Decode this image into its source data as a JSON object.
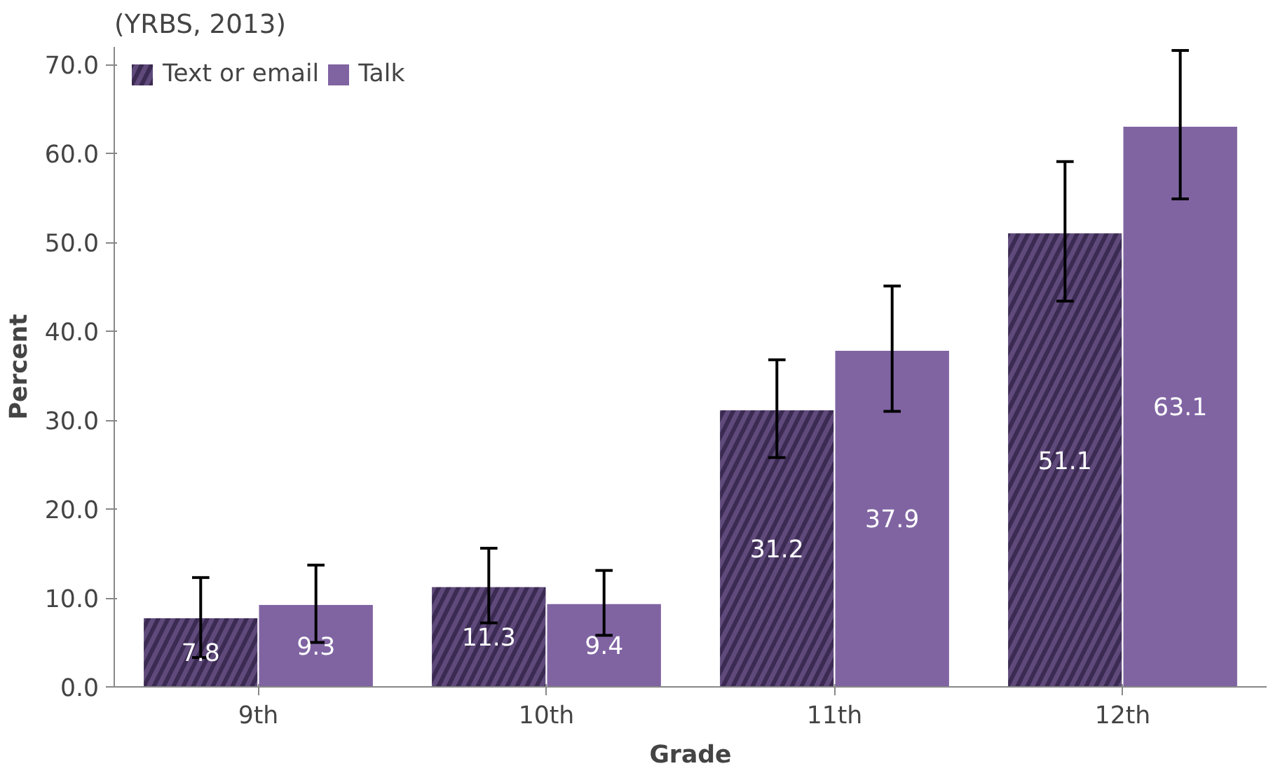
{
  "chart_data": {
    "type": "bar",
    "title": "(YRBS, 2013)",
    "xlabel": "Grade",
    "ylabel": "Percent",
    "categories": [
      "9th",
      "10th",
      "11th",
      "12th"
    ],
    "series": [
      {
        "name": "Text or email",
        "color": "#5f4a7b",
        "values": [
          7.8,
          11.3,
          31.2,
          51.1
        ],
        "errors": [
          [
            3.3,
            12.3
          ],
          [
            7.2,
            15.6
          ],
          [
            25.8,
            36.8
          ],
          [
            43.4,
            59.1
          ]
        ]
      },
      {
        "name": "Talk",
        "color": "#8064a2",
        "values": [
          9.3,
          9.4,
          37.9,
          63.1
        ],
        "errors": [
          [
            5.0,
            13.7
          ],
          [
            5.8,
            13.1
          ],
          [
            31.0,
            45.1
          ],
          [
            54.9,
            71.6
          ]
        ]
      }
    ],
    "ylim": [
      0,
      72
    ],
    "yticks": [
      {
        "value": 0,
        "label": "0.0"
      },
      {
        "value": 10,
        "label": "10.0"
      },
      {
        "value": 20,
        "label": "20.0"
      },
      {
        "value": 30,
        "label": "30.0"
      },
      {
        "value": 40,
        "label": "40.0"
      },
      {
        "value": 50,
        "label": "50.0"
      },
      {
        "value": 60,
        "label": "60.0"
      },
      {
        "value": 70,
        "label": "70.0"
      }
    ],
    "data_labels": true,
    "legend": "top left",
    "grid": false
  }
}
